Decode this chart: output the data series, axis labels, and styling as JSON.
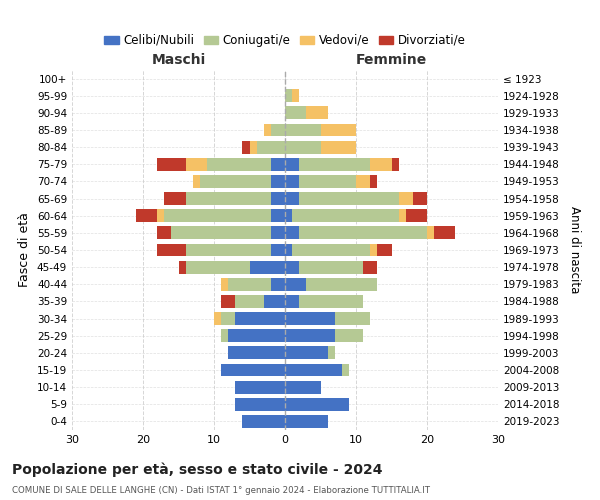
{
  "age_groups": [
    "0-4",
    "5-9",
    "10-14",
    "15-19",
    "20-24",
    "25-29",
    "30-34",
    "35-39",
    "40-44",
    "45-49",
    "50-54",
    "55-59",
    "60-64",
    "65-69",
    "70-74",
    "75-79",
    "80-84",
    "85-89",
    "90-94",
    "95-99",
    "100+"
  ],
  "birth_years": [
    "2019-2023",
    "2014-2018",
    "2009-2013",
    "2004-2008",
    "1999-2003",
    "1994-1998",
    "1989-1993",
    "1984-1988",
    "1979-1983",
    "1974-1978",
    "1969-1973",
    "1964-1968",
    "1959-1963",
    "1954-1958",
    "1949-1953",
    "1944-1948",
    "1939-1943",
    "1934-1938",
    "1929-1933",
    "1924-1928",
    "≤ 1923"
  ],
  "male": {
    "celibi": [
      6,
      7,
      7,
      9,
      8,
      8,
      7,
      3,
      2,
      5,
      2,
      2,
      2,
      2,
      2,
      2,
      0,
      0,
      0,
      0,
      0
    ],
    "coniugati": [
      0,
      0,
      0,
      0,
      0,
      1,
      2,
      4,
      6,
      9,
      12,
      14,
      15,
      12,
      10,
      9,
      4,
      2,
      0,
      0,
      0
    ],
    "vedovi": [
      0,
      0,
      0,
      0,
      0,
      0,
      1,
      0,
      1,
      0,
      0,
      0,
      1,
      0,
      1,
      3,
      1,
      1,
      0,
      0,
      0
    ],
    "divorziati": [
      0,
      0,
      0,
      0,
      0,
      0,
      0,
      2,
      0,
      1,
      4,
      2,
      3,
      3,
      0,
      4,
      1,
      0,
      0,
      0,
      0
    ]
  },
  "female": {
    "nubili": [
      6,
      9,
      5,
      8,
      6,
      7,
      7,
      2,
      3,
      2,
      1,
      2,
      1,
      2,
      2,
      2,
      0,
      0,
      0,
      0,
      0
    ],
    "coniugate": [
      0,
      0,
      0,
      1,
      1,
      4,
      5,
      9,
      10,
      9,
      11,
      18,
      15,
      14,
      8,
      10,
      5,
      5,
      3,
      1,
      0
    ],
    "vedove": [
      0,
      0,
      0,
      0,
      0,
      0,
      0,
      0,
      0,
      0,
      1,
      1,
      1,
      2,
      2,
      3,
      5,
      5,
      3,
      1,
      0
    ],
    "divorziate": [
      0,
      0,
      0,
      0,
      0,
      0,
      0,
      0,
      0,
      2,
      2,
      3,
      3,
      2,
      1,
      1,
      0,
      0,
      0,
      0,
      0
    ]
  },
  "colors": {
    "celibi": "#4472c4",
    "coniugati": "#b5c994",
    "vedovi": "#f5c165",
    "divorziati": "#c0392b"
  },
  "title": "Popolazione per età, sesso e stato civile - 2024",
  "subtitle": "COMUNE DI SALE DELLE LANGHE (CN) - Dati ISTAT 1° gennaio 2024 - Elaborazione TUTTITALIA.IT",
  "xlabel_left": "Maschi",
  "xlabel_right": "Femmine",
  "ylabel_left": "Fasce di età",
  "ylabel_right": "Anni di nascita",
  "xlim": 30,
  "legend_labels": [
    "Celibi/Nubili",
    "Coniugati/e",
    "Vedovi/e",
    "Divorziati/e"
  ],
  "background_color": "#ffffff",
  "grid_color": "#cccccc"
}
